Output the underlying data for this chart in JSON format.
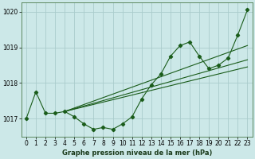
{
  "title": "Graphe pression niveau de la mer (hPa)",
  "bg_color": "#cce8e8",
  "grid_color": "#aacccc",
  "line_color": "#1a5c1a",
  "ylim": [
    1016.5,
    1020.25
  ],
  "xlim": [
    -0.5,
    23.5
  ],
  "yticks": [
    1017,
    1018,
    1019,
    1020
  ],
  "xticks": [
    0,
    1,
    2,
    3,
    4,
    5,
    6,
    7,
    8,
    9,
    10,
    11,
    12,
    13,
    14,
    15,
    16,
    17,
    18,
    19,
    20,
    21,
    22,
    23
  ],
  "series1": [
    1017.0,
    1017.75,
    1017.15,
    1017.15,
    1017.2,
    1017.05,
    1016.85,
    1016.7,
    1016.75,
    1016.7,
    1016.85,
    1017.05,
    1017.55,
    1017.95,
    1018.25,
    1018.75,
    1019.05,
    1019.15,
    1018.75,
    1018.4,
    1018.5,
    1018.7,
    1019.35,
    1020.05
  ],
  "straight_line1": [
    [
      4,
      1017.2
    ],
    [
      23,
      1018.45
    ]
  ],
  "straight_line2": [
    [
      4,
      1017.2
    ],
    [
      23,
      1018.65
    ]
  ],
  "straight_line3": [
    [
      4,
      1017.2
    ],
    [
      23,
      1019.05
    ]
  ],
  "tick_fontsize": 5.5,
  "label_fontsize": 6.0
}
